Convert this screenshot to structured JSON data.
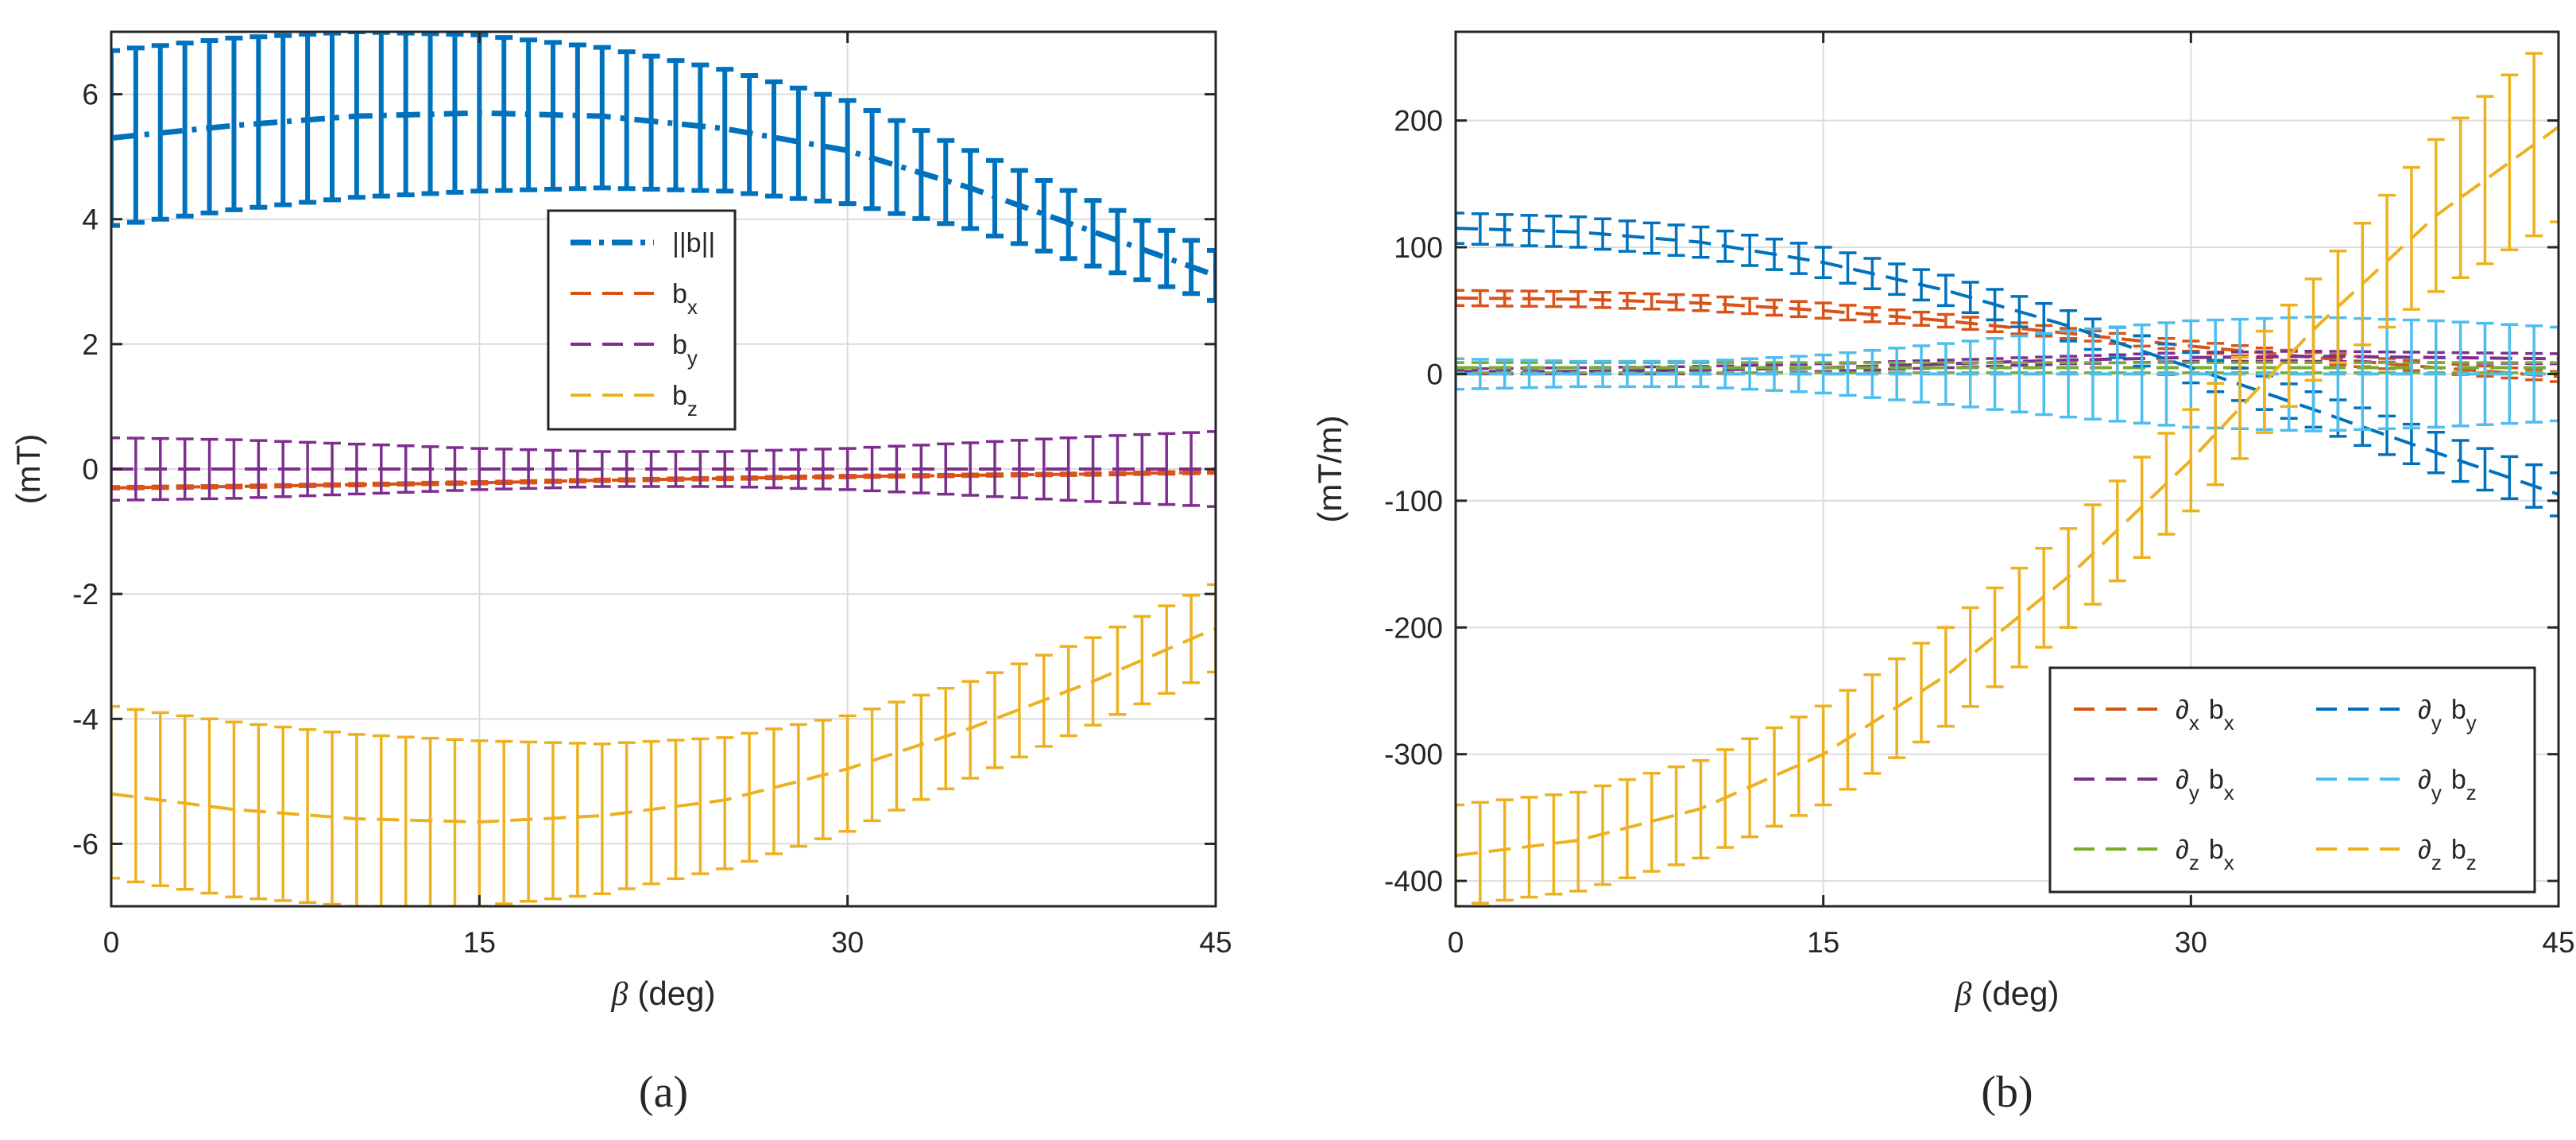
{
  "chart_data": [
    {
      "panel": "a",
      "caption": "(a)",
      "type": "line",
      "xlabel": "(deg)",
      "xlabel_symbol": "β",
      "ylabel": "(mT)",
      "xlim": [
        0,
        45
      ],
      "ylim": [
        -7,
        7
      ],
      "xticks": [
        0,
        15,
        30,
        45
      ],
      "yticks": [
        -6,
        -4,
        -2,
        0,
        2,
        4,
        6
      ],
      "xtick_labels": [
        "0",
        "15",
        "30",
        "45"
      ],
      "ytick_labels": [
        "-6",
        "-4",
        "-2",
        "0",
        "2",
        "4",
        "6"
      ],
      "grid": true,
      "legend_position": "center",
      "x": [
        0,
        5,
        10,
        15,
        20,
        25,
        30,
        35,
        40,
        45
      ],
      "series": [
        {
          "name": "||b||",
          "base": "b",
          "sub": "",
          "style": "dashdot",
          "color": "#0072BD",
          "thick": true,
          "values": [
            5.3,
            5.5,
            5.65,
            5.7,
            5.65,
            5.45,
            5.1,
            4.5,
            3.8,
            3.1
          ],
          "upper": [
            6.7,
            6.9,
            7.0,
            6.95,
            6.75,
            6.4,
            5.9,
            5.1,
            4.3,
            3.5
          ],
          "lower": [
            3.9,
            4.15,
            4.35,
            4.45,
            4.5,
            4.45,
            4.25,
            3.85,
            3.25,
            2.7
          ]
        },
        {
          "name": "b_x",
          "base": "b",
          "sub": "x",
          "style": "dash",
          "color": "#D95319",
          "thick": false,
          "values": [
            -0.3,
            -0.28,
            -0.25,
            -0.22,
            -0.18,
            -0.15,
            -0.12,
            -0.1,
            -0.08,
            -0.05
          ],
          "upper": [
            -0.28,
            -0.26,
            -0.23,
            -0.2,
            -0.16,
            -0.13,
            -0.1,
            -0.08,
            -0.06,
            -0.03
          ],
          "lower": [
            -0.32,
            -0.3,
            -0.27,
            -0.24,
            -0.2,
            -0.17,
            -0.14,
            -0.12,
            -0.1,
            -0.07
          ]
        },
        {
          "name": "b_y",
          "base": "b",
          "sub": "y",
          "style": "dash",
          "color": "#7E2F8E",
          "thick": false,
          "values": [
            0,
            0,
            0,
            0,
            0,
            0,
            0,
            0,
            0,
            0
          ],
          "upper": [
            0.5,
            0.47,
            0.4,
            0.33,
            0.28,
            0.28,
            0.33,
            0.42,
            0.52,
            0.6
          ],
          "lower": [
            -0.5,
            -0.47,
            -0.4,
            -0.33,
            -0.28,
            -0.28,
            -0.33,
            -0.42,
            -0.52,
            -0.6
          ]
        },
        {
          "name": "b_z",
          "base": "b",
          "sub": "z",
          "style": "dash",
          "color": "#EDB120",
          "thick": false,
          "values": [
            -5.2,
            -5.45,
            -5.6,
            -5.65,
            -5.55,
            -5.3,
            -4.8,
            -4.15,
            -3.4,
            -2.55
          ],
          "upper": [
            -3.8,
            -4.05,
            -4.25,
            -4.35,
            -4.4,
            -4.3,
            -3.95,
            -3.4,
            -2.7,
            -1.85
          ],
          "lower": [
            -6.55,
            -6.85,
            -7.0,
            -7.0,
            -6.8,
            -6.4,
            -5.8,
            -4.95,
            -4.1,
            -3.25
          ]
        }
      ]
    },
    {
      "panel": "b",
      "caption": "(b)",
      "type": "line",
      "xlabel": "(deg)",
      "xlabel_symbol": "β",
      "ylabel": "(mT/m)",
      "xlim": [
        0,
        45
      ],
      "ylim": [
        -420,
        270
      ],
      "xticks": [
        0,
        15,
        30,
        45
      ],
      "yticks": [
        -400,
        -300,
        -200,
        -100,
        0,
        100,
        200
      ],
      "xtick_labels": [
        "0",
        "15",
        "30",
        "45"
      ],
      "ytick_labels": [
        "-400",
        "-300",
        "-200",
        "-100",
        "0",
        "100",
        "200"
      ],
      "grid": true,
      "legend_position": "bottom-right",
      "legend_columns": 2,
      "x": [
        0,
        5,
        10,
        15,
        20,
        25,
        30,
        35,
        40,
        45
      ],
      "series": [
        {
          "name": "∂x bx",
          "d": "x",
          "b": "x",
          "style": "dash",
          "color": "#D95319",
          "thick": false,
          "values": [
            60,
            59,
            56,
            50,
            42,
            32,
            22,
            13,
            5,
            -2
          ],
          "upper": [
            66,
            65,
            62,
            56,
            47,
            36,
            26,
            17,
            9,
            2
          ],
          "lower": [
            54,
            53,
            50,
            44,
            37,
            28,
            18,
            9,
            1,
            -6
          ]
        },
        {
          "name": "∂y bx",
          "d": "y",
          "b": "x",
          "style": "dash",
          "color": "#7E2F8E",
          "thick": false,
          "values": [
            2,
            2,
            3,
            5,
            8,
            11,
            13,
            14,
            13,
            12
          ],
          "upper": [
            4,
            5,
            6,
            8,
            11,
            14,
            17,
            18,
            17,
            16
          ],
          "lower": [
            0,
            0,
            0,
            2,
            5,
            8,
            10,
            10,
            9,
            8
          ]
        },
        {
          "name": "∂z bx",
          "d": "z",
          "b": "x",
          "style": "dash",
          "color": "#77AC30",
          "thick": false,
          "values": [
            5,
            5,
            5,
            5,
            5,
            5,
            5,
            5,
            5,
            5
          ],
          "upper": [
            9,
            9,
            9,
            9,
            9,
            9,
            9,
            9,
            9,
            9
          ],
          "lower": [
            1,
            1,
            1,
            1,
            1,
            1,
            1,
            1,
            1,
            1
          ]
        },
        {
          "name": "∂y by",
          "d": "y",
          "b": "y",
          "style": "dash",
          "color": "#0072BD",
          "thick": false,
          "values": [
            115,
            112,
            104,
            88,
            66,
            38,
            5,
            -28,
            -62,
            -95
          ],
          "upper": [
            127,
            124,
            116,
            100,
            78,
            50,
            17,
            -14,
            -46,
            -78
          ],
          "lower": [
            103,
            100,
            92,
            76,
            54,
            26,
            -7,
            -42,
            -78,
            -112
          ]
        },
        {
          "name": "∂y bz",
          "d": "y",
          "b": "z",
          "style": "dash",
          "color": "#4DBEEE",
          "thick": false,
          "values": [
            0,
            0,
            0,
            0,
            0,
            0,
            0,
            0,
            0,
            0
          ],
          "upper": [
            12,
            10,
            10,
            15,
            24,
            34,
            42,
            45,
            42,
            37
          ],
          "lower": [
            -12,
            -10,
            -10,
            -15,
            -24,
            -34,
            -42,
            -45,
            -42,
            -37
          ]
        },
        {
          "name": "∂z bz",
          "d": "z",
          "b": "z",
          "style": "dash",
          "color": "#EDB120",
          "thick": false,
          "values": [
            -380,
            -368,
            -343,
            -300,
            -238,
            -160,
            -68,
            35,
            125,
            195
          ],
          "upper": [
            -340,
            -330,
            -305,
            -262,
            -200,
            -122,
            -28,
            75,
            185,
            270
          ],
          "lower": [
            -420,
            -408,
            -382,
            -340,
            -278,
            -200,
            -108,
            -5,
            65,
            120
          ]
        }
      ]
    }
  ]
}
